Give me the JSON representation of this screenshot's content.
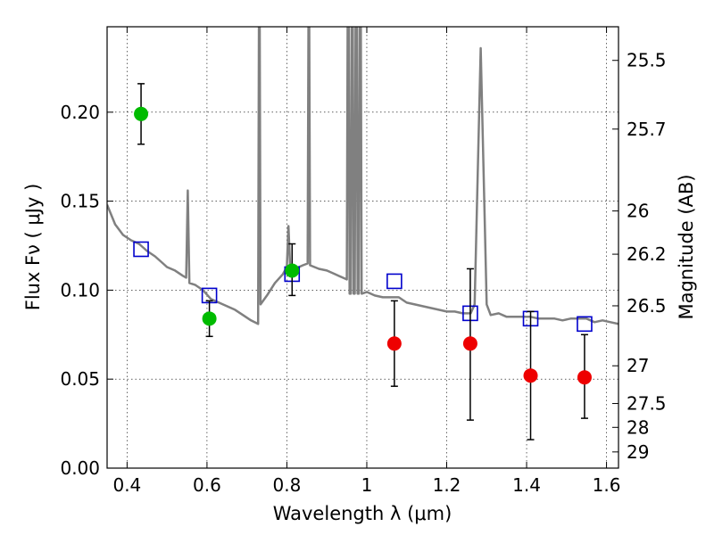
{
  "chart_data": {
    "type": "scatter",
    "title": "",
    "xlabel": "Wavelength  λ (μm)",
    "ylabel": "Flux  Fν  ( μJy )",
    "ylabel2": "Magnitude (AB)",
    "xlim": [
      0.35,
      1.63
    ],
    "ylim": [
      0.0,
      0.248
    ],
    "grid": true,
    "x_ticks": [
      0.4,
      0.6,
      0.8,
      1.0,
      1.2,
      1.4,
      1.6
    ],
    "x_tick_labels": [
      "0.4",
      "0.6",
      "0.8",
      "1",
      "1.2",
      "1.4",
      "1.6"
    ],
    "y_ticks": [
      0.0,
      0.05,
      0.1,
      0.15,
      0.2
    ],
    "y_tick_labels": [
      "0.00",
      "0.05",
      "0.10",
      "0.15",
      "0.20"
    ],
    "right_ticks": [
      {
        "label": "25.5",
        "flux": 0.2291
      },
      {
        "label": "25.7",
        "flux": 0.1905
      },
      {
        "label": "26",
        "flux": 0.1445
      },
      {
        "label": "26.2",
        "flux": 0.1202
      },
      {
        "label": "26.5",
        "flux": 0.0912
      },
      {
        "label": "27",
        "flux": 0.0575
      },
      {
        "label": "27.5",
        "flux": 0.0363
      },
      {
        "label": "28",
        "flux": 0.0229
      },
      {
        "label": "29",
        "flux": 0.0091
      }
    ],
    "series": [
      {
        "style": "model-spectrum",
        "color": "#808080",
        "points": [
          [
            0.35,
            0.148
          ],
          [
            0.37,
            0.137
          ],
          [
            0.39,
            0.131
          ],
          [
            0.41,
            0.128
          ],
          [
            0.43,
            0.126
          ],
          [
            0.45,
            0.122
          ],
          [
            0.47,
            0.119
          ],
          [
            0.49,
            0.115
          ],
          [
            0.5,
            0.113
          ],
          [
            0.52,
            0.111
          ],
          [
            0.54,
            0.108
          ],
          [
            0.548,
            0.107
          ],
          [
            0.552,
            0.156
          ],
          [
            0.556,
            0.104
          ],
          [
            0.57,
            0.103
          ],
          [
            0.59,
            0.1
          ],
          [
            0.61,
            0.095
          ],
          [
            0.63,
            0.093
          ],
          [
            0.65,
            0.091
          ],
          [
            0.67,
            0.089
          ],
          [
            0.69,
            0.086
          ],
          [
            0.71,
            0.083
          ],
          [
            0.728,
            0.081
          ],
          [
            0.73,
            0.248
          ],
          [
            0.732,
            0.248
          ],
          [
            0.734,
            0.092
          ],
          [
            0.75,
            0.097
          ],
          [
            0.77,
            0.104
          ],
          [
            0.79,
            0.109
          ],
          [
            0.8,
            0.113
          ],
          [
            0.804,
            0.136
          ],
          [
            0.808,
            0.114
          ],
          [
            0.82,
            0.112
          ],
          [
            0.84,
            0.114
          ],
          [
            0.852,
            0.115
          ],
          [
            0.854,
            0.248
          ],
          [
            0.856,
            0.248
          ],
          [
            0.858,
            0.114
          ],
          [
            0.88,
            0.112
          ],
          [
            0.9,
            0.111
          ],
          [
            0.92,
            0.109
          ],
          [
            0.94,
            0.107
          ],
          [
            0.95,
            0.106
          ],
          [
            0.952,
            0.248
          ],
          [
            0.955,
            0.248
          ],
          [
            0.957,
            0.098
          ],
          [
            0.96,
            0.098
          ],
          [
            0.962,
            0.248
          ],
          [
            0.965,
            0.248
          ],
          [
            0.967,
            0.098
          ],
          [
            0.97,
            0.098
          ],
          [
            0.972,
            0.248
          ],
          [
            0.975,
            0.248
          ],
          [
            0.977,
            0.098
          ],
          [
            0.98,
            0.098
          ],
          [
            0.982,
            0.248
          ],
          [
            0.985,
            0.248
          ],
          [
            0.987,
            0.098
          ],
          [
            1.0,
            0.099
          ],
          [
            1.02,
            0.097
          ],
          [
            1.04,
            0.096
          ],
          [
            1.06,
            0.096
          ],
          [
            1.08,
            0.096
          ],
          [
            1.1,
            0.093
          ],
          [
            1.12,
            0.092
          ],
          [
            1.14,
            0.091
          ],
          [
            1.16,
            0.09
          ],
          [
            1.18,
            0.089
          ],
          [
            1.2,
            0.088
          ],
          [
            1.22,
            0.088
          ],
          [
            1.24,
            0.087
          ],
          [
            1.26,
            0.087
          ],
          [
            1.27,
            0.092
          ],
          [
            1.285,
            0.236
          ],
          [
            1.3,
            0.092
          ],
          [
            1.31,
            0.086
          ],
          [
            1.33,
            0.087
          ],
          [
            1.35,
            0.085
          ],
          [
            1.37,
            0.085
          ],
          [
            1.39,
            0.085
          ],
          [
            1.41,
            0.085
          ],
          [
            1.43,
            0.084
          ],
          [
            1.45,
            0.084
          ],
          [
            1.47,
            0.084
          ],
          [
            1.49,
            0.083
          ],
          [
            1.51,
            0.084
          ],
          [
            1.53,
            0.084
          ],
          [
            1.55,
            0.084
          ],
          [
            1.57,
            0.082
          ],
          [
            1.59,
            0.083
          ],
          [
            1.61,
            0.082
          ],
          [
            1.63,
            0.081
          ]
        ]
      },
      {
        "style": "open-square",
        "color": "#0000cc",
        "points": [
          [
            0.435,
            0.123
          ],
          [
            0.606,
            0.097
          ],
          [
            0.813,
            0.109
          ],
          [
            1.069,
            0.105
          ],
          [
            1.259,
            0.087
          ],
          [
            1.41,
            0.084
          ],
          [
            1.545,
            0.081
          ]
        ]
      },
      {
        "style": "filled-circle",
        "color": "#00bb00",
        "points": [
          {
            "x": 0.435,
            "y": 0.199,
            "err_low": 0.182,
            "err_high": 0.216
          },
          {
            "x": 0.606,
            "y": 0.084,
            "err_low": 0.074,
            "err_high": 0.094
          },
          {
            "x": 0.813,
            "y": 0.111,
            "err_low": 0.097,
            "err_high": 0.126
          }
        ]
      },
      {
        "style": "filled-circle",
        "color": "#ee0000",
        "points": [
          {
            "x": 1.069,
            "y": 0.07,
            "err_low": 0.046,
            "err_high": 0.094
          },
          {
            "x": 1.259,
            "y": 0.07,
            "err_low": 0.027,
            "err_high": 0.112
          },
          {
            "x": 1.41,
            "y": 0.052,
            "err_low": 0.016,
            "err_high": 0.088
          },
          {
            "x": 1.545,
            "y": 0.051,
            "err_low": 0.028,
            "err_high": 0.075
          }
        ]
      }
    ]
  }
}
